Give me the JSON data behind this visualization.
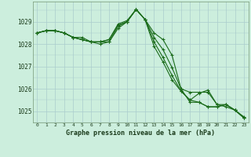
{
  "background_color": "#cceedd",
  "grid_color": "#aacccc",
  "line_color": "#1a6b1a",
  "marker_color": "#1a6b1a",
  "title": "Graphe pression niveau de la mer (hPa)",
  "ylim": [
    1024.5,
    1029.9
  ],
  "xlim": [
    -0.5,
    23.5
  ],
  "yticks": [
    1025,
    1026,
    1027,
    1028,
    1029
  ],
  "xticks": [
    0,
    1,
    2,
    3,
    4,
    5,
    6,
    7,
    8,
    9,
    10,
    11,
    12,
    13,
    14,
    15,
    16,
    17,
    18,
    19,
    20,
    21,
    22,
    23
  ],
  "series": [
    [
      1028.5,
      1028.6,
      1028.6,
      1028.5,
      1028.3,
      1028.3,
      1028.1,
      1028.1,
      1028.2,
      1028.85,
      1029.0,
      1029.55,
      1029.1,
      1028.5,
      1028.2,
      1027.5,
      1026.0,
      1025.85,
      1025.85,
      1025.85,
      1025.3,
      1025.3,
      1025.05,
      1024.75
    ],
    [
      1028.5,
      1028.6,
      1028.6,
      1028.5,
      1028.3,
      1028.2,
      1028.1,
      1028.0,
      1028.1,
      1028.7,
      1029.0,
      1029.55,
      1029.1,
      1028.1,
      1027.4,
      1026.6,
      1025.9,
      1025.5,
      1025.4,
      1025.2,
      1025.2,
      1025.3,
      1025.05,
      1024.7
    ],
    [
      1028.5,
      1028.6,
      1028.6,
      1028.5,
      1028.3,
      1028.2,
      1028.1,
      1028.1,
      1028.1,
      1028.8,
      1029.0,
      1029.55,
      1029.1,
      1027.9,
      1027.2,
      1026.4,
      1025.9,
      1025.5,
      1025.8,
      1025.95,
      1025.3,
      1025.2,
      1025.05,
      1024.7
    ],
    [
      1028.5,
      1028.6,
      1028.6,
      1028.5,
      1028.3,
      1028.2,
      1028.1,
      1028.1,
      1028.2,
      1028.9,
      1029.05,
      1029.55,
      1029.1,
      1028.3,
      1027.75,
      1026.95,
      1026.0,
      1025.4,
      1025.4,
      1025.2,
      1025.2,
      1025.3,
      1025.05,
      1024.7
    ]
  ]
}
